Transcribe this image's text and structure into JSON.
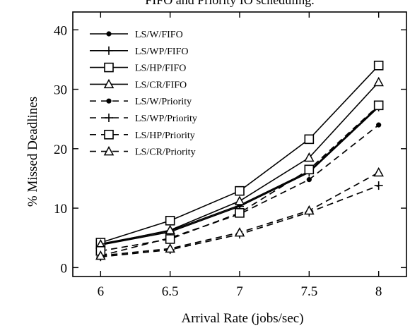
{
  "title": "FIFO and Priority IO scheduling.",
  "chart_data": {
    "type": "line",
    "xlabel": "Arrival Rate (jobs/sec)",
    "ylabel": "% Missed Deadlines",
    "x": [
      6,
      6.5,
      7,
      7.5,
      8
    ],
    "xlim": [
      5.8,
      8.2
    ],
    "ylim": [
      -1.5,
      43
    ],
    "xticks": [
      "6",
      "6.5",
      "7",
      "7.5",
      "8"
    ],
    "yticks": [
      "0",
      "10",
      "20",
      "30",
      "40"
    ],
    "grid": false,
    "legend_position": "top-left",
    "series": [
      {
        "name": "LS/W/FIFO",
        "values": [
          4.0,
          6.2,
          10.5,
          16.2,
          27.2
        ],
        "dash": "solid",
        "marker": "dot"
      },
      {
        "name": "LS/WP/FIFO",
        "values": [
          3.8,
          6.0,
          10.3,
          16.0,
          27.0
        ],
        "dash": "solid",
        "marker": "plus"
      },
      {
        "name": "LS/HP/FIFO",
        "values": [
          4.2,
          7.9,
          12.9,
          21.6,
          34.0
        ],
        "dash": "solid",
        "marker": "square"
      },
      {
        "name": "LS/CR/FIFO",
        "values": [
          3.9,
          6.3,
          11.2,
          18.5,
          31.2
        ],
        "dash": "solid",
        "marker": "triangle"
      },
      {
        "name": "LS/W/Priority",
        "values": [
          2.0,
          5.0,
          9.0,
          14.8,
          24.0
        ],
        "dash": "dashed",
        "marker": "dot"
      },
      {
        "name": "LS/WP/Priority",
        "values": [
          1.8,
          3.0,
          5.6,
          9.3,
          13.8
        ],
        "dash": "dashed",
        "marker": "plus"
      },
      {
        "name": "LS/HP/Priority",
        "values": [
          2.8,
          4.8,
          9.2,
          16.5,
          27.3
        ],
        "dash": "dashed",
        "marker": "square"
      },
      {
        "name": "LS/CR/Priority",
        "values": [
          2.0,
          3.2,
          5.9,
          9.6,
          16.0
        ],
        "dash": "dashed",
        "marker": "triangle"
      }
    ],
    "colors": {
      "line": "#000000",
      "background": "#ffffff"
    }
  }
}
